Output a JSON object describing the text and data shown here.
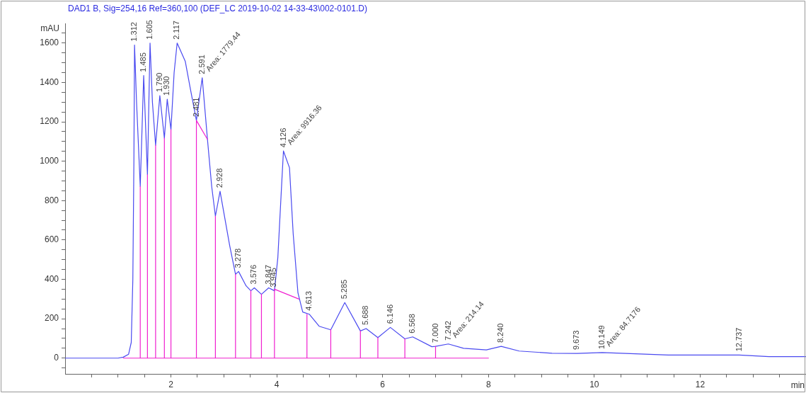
{
  "chart_data": {
    "type": "line",
    "title": "DAD1 B, Sig=254,16 Ref=360,100 (DEF_LC 2019-10-02 14-33-43\\002-0101.D)",
    "xlabel": "min",
    "ylabel": "mAU",
    "xlim": [
      0,
      14
    ],
    "ylim": [
      -80,
      1700
    ],
    "xticks": [
      {
        "value": 0.5,
        "label": null
      },
      {
        "value": 1,
        "label": null
      },
      {
        "value": 1.5,
        "label": null
      },
      2,
      {
        "value": 2.5,
        "label": null
      },
      {
        "value": 3,
        "label": null
      },
      {
        "value": 3.5,
        "label": null
      },
      4,
      {
        "value": 4.5,
        "label": null
      },
      {
        "value": 5,
        "label": null
      },
      {
        "value": 5.5,
        "label": null
      },
      6,
      {
        "value": 6.5,
        "label": null
      },
      {
        "value": 7,
        "label": null
      },
      {
        "value": 7.5,
        "label": null
      },
      8,
      {
        "value": 8.5,
        "label": null
      },
      {
        "value": 9,
        "label": null
      },
      {
        "value": 9.5,
        "label": null
      },
      10,
      {
        "value": 10.5,
        "label": null
      },
      {
        "value": 11,
        "label": null
      },
      {
        "value": 11.5,
        "label": null
      },
      12,
      {
        "value": 12.5,
        "label": null
      },
      {
        "value": 13,
        "label": null
      },
      {
        "value": 13.5,
        "label": null
      }
    ],
    "yticks": [
      {
        "value": -50,
        "label": null
      },
      0,
      {
        "value": 50,
        "label": null
      },
      {
        "value": 100,
        "label": null
      },
      {
        "value": 150,
        "label": null
      },
      200,
      {
        "value": 250,
        "label": null
      },
      {
        "value": 300,
        "label": null
      },
      {
        "value": 350,
        "label": null
      },
      400,
      {
        "value": 450,
        "label": null
      },
      {
        "value": 500,
        "label": null
      },
      {
        "value": 550,
        "label": null
      },
      600,
      {
        "value": 650,
        "label": null
      },
      {
        "value": 700,
        "label": null
      },
      {
        "value": 750,
        "label": null
      },
      800,
      {
        "value": 850,
        "label": null
      },
      {
        "value": 900,
        "label": null
      },
      {
        "value": 950,
        "label": null
      },
      1000,
      {
        "value": 1050,
        "label": null
      },
      {
        "value": 1100,
        "label": null
      },
      {
        "value": 1150,
        "label": null
      },
      1200,
      {
        "value": 1250,
        "label": null
      },
      {
        "value": 1300,
        "label": null
      },
      {
        "value": 1350,
        "label": null
      },
      1400,
      {
        "value": 1450,
        "label": null
      },
      {
        "value": 1500,
        "label": null
      },
      {
        "value": 1550,
        "label": null
      },
      1600,
      {
        "value": 1650,
        "label": null
      }
    ],
    "legend": false,
    "marker": "none",
    "line_style": "solid",
    "series": [
      {
        "type": "line",
        "color": "#4a4af0",
        "x": [
          0,
          1,
          1.1,
          1.2,
          1.25,
          1.28,
          1.3,
          1.312,
          1.35,
          1.42,
          1.485,
          1.556,
          1.605,
          1.65,
          1.71,
          1.79,
          1.876,
          1.93,
          2.0,
          2.06,
          2.117,
          2.27,
          2.37,
          2.481,
          2.591,
          2.69,
          2.77,
          2.84,
          2.928,
          3.11,
          3.22,
          3.278,
          3.42,
          3.51,
          3.576,
          3.71,
          3.847,
          3.956,
          4.02,
          4.09,
          4.126,
          4.24,
          4.31,
          4.4,
          4.49,
          4.613,
          4.8,
          5.02,
          5.285,
          5.58,
          5.688,
          5.91,
          6.146,
          6.42,
          6.568,
          6.93,
          7.0,
          7.242,
          7.53,
          7.96,
          8.24,
          8.58,
          9.2,
          9.673,
          10.149,
          11.4,
          12.0,
          12.737,
          13.3,
          14
        ],
        "values": [
          0,
          0,
          5,
          20,
          80,
          400,
          1000,
          1590,
          1300,
          872,
          1435,
          931,
          1600,
          1300,
          1081,
          1333,
          1117,
          1315,
          1160,
          1450,
          1600,
          1508,
          1363,
          1207,
          1424,
          1111,
          872,
          721,
          847,
          571,
          426,
          440,
          367,
          342,
          357,
          324,
          357,
          342,
          511,
          872,
          1052,
          967,
          631,
          331,
          234,
          223,
          162,
          144,
          282,
          138,
          150,
          104,
          156,
          98,
          108,
          58,
          60,
          72,
          50,
          42,
          60,
          36,
          25,
          24,
          28,
          16,
          16,
          16,
          8,
          8
        ]
      },
      {
        "type": "line",
        "color": "#f020d0",
        "x": [
          1.1,
          8.0,
          null,
          1.42,
          1.42,
          null,
          1.556,
          1.556,
          null,
          1.71,
          1.71,
          null,
          1.876,
          1.876,
          null,
          2.0,
          2.0,
          null,
          2.481,
          2.481,
          2.69,
          null,
          2.84,
          2.84,
          null,
          3.22,
          3.22,
          null,
          3.51,
          3.51,
          null,
          3.71,
          3.71,
          null,
          3.956,
          3.956,
          4.42,
          null,
          4.57,
          4.57,
          null,
          5.02,
          5.02,
          null,
          5.58,
          5.58,
          null,
          5.91,
          5.91,
          null,
          6.42,
          6.42,
          null,
          7.0,
          7.0,
          null
        ],
        "values": [
          0,
          0,
          null,
          0,
          872,
          null,
          0,
          931,
          null,
          0,
          1081,
          null,
          0,
          1117,
          null,
          0,
          1160,
          null,
          0,
          1207,
          1111,
          null,
          0,
          721,
          null,
          0,
          426,
          null,
          0,
          342,
          null,
          0,
          324,
          null,
          0,
          350,
          300,
          null,
          0,
          223,
          null,
          0,
          144,
          null,
          0,
          138,
          null,
          0,
          104,
          null,
          0,
          98,
          null,
          0,
          60,
          null
        ]
      }
    ],
    "annotations": [
      {
        "text": "1.312",
        "x": 1.312,
        "y": 1590
      },
      {
        "text": "1.485",
        "x": 1.485,
        "y": 1435
      },
      {
        "text": "1.605",
        "x": 1.605,
        "y": 1600
      },
      {
        "text": "1.790",
        "x": 1.79,
        "y": 1333
      },
      {
        "text": "1.930",
        "x": 1.93,
        "y": 1315
      },
      {
        "text": "2.117",
        "x": 2.117,
        "y": 1600
      },
      {
        "text": "2.481",
        "x": 2.481,
        "y": 1207
      },
      {
        "text": "2.591",
        "x": 2.591,
        "y": 1424
      },
      {
        "text": "Area: 1779.44",
        "x": 2.591,
        "y": 1424
      },
      {
        "text": "2.928",
        "x": 2.928,
        "y": 847
      },
      {
        "text": "3.278",
        "x": 3.278,
        "y": 440
      },
      {
        "text": "3.576",
        "x": 3.576,
        "y": 357
      },
      {
        "text": "3.847",
        "x": 3.847,
        "y": 357
      },
      {
        "text": "3.945",
        "x": 3.945,
        "y": 342
      },
      {
        "text": "4.126",
        "x": 4.126,
        "y": 1052
      },
      {
        "text": "Area: 9916.36",
        "x": 4.126,
        "y": 1052
      },
      {
        "text": "4.613",
        "x": 4.613,
        "y": 223
      },
      {
        "text": "5.285",
        "x": 5.285,
        "y": 282
      },
      {
        "text": "5.688",
        "x": 5.688,
        "y": 150
      },
      {
        "text": "6.146",
        "x": 6.146,
        "y": 156
      },
      {
        "text": "6.568",
        "x": 6.568,
        "y": 108
      },
      {
        "text": "7.000",
        "x": 7.0,
        "y": 60
      },
      {
        "text": "7.242",
        "x": 7.242,
        "y": 72
      },
      {
        "text": "Area: 214.14",
        "x": 7.242,
        "y": 72
      },
      {
        "text": "8.240",
        "x": 8.24,
        "y": 60
      },
      {
        "text": "9.673",
        "x": 9.673,
        "y": 24
      },
      {
        "text": "10.149",
        "x": 10.149,
        "y": 28
      },
      {
        "text": "Area: 84.7176",
        "x": 10.149,
        "y": 28
      },
      {
        "text": "12.737",
        "x": 12.737,
        "y": 16
      }
    ]
  }
}
